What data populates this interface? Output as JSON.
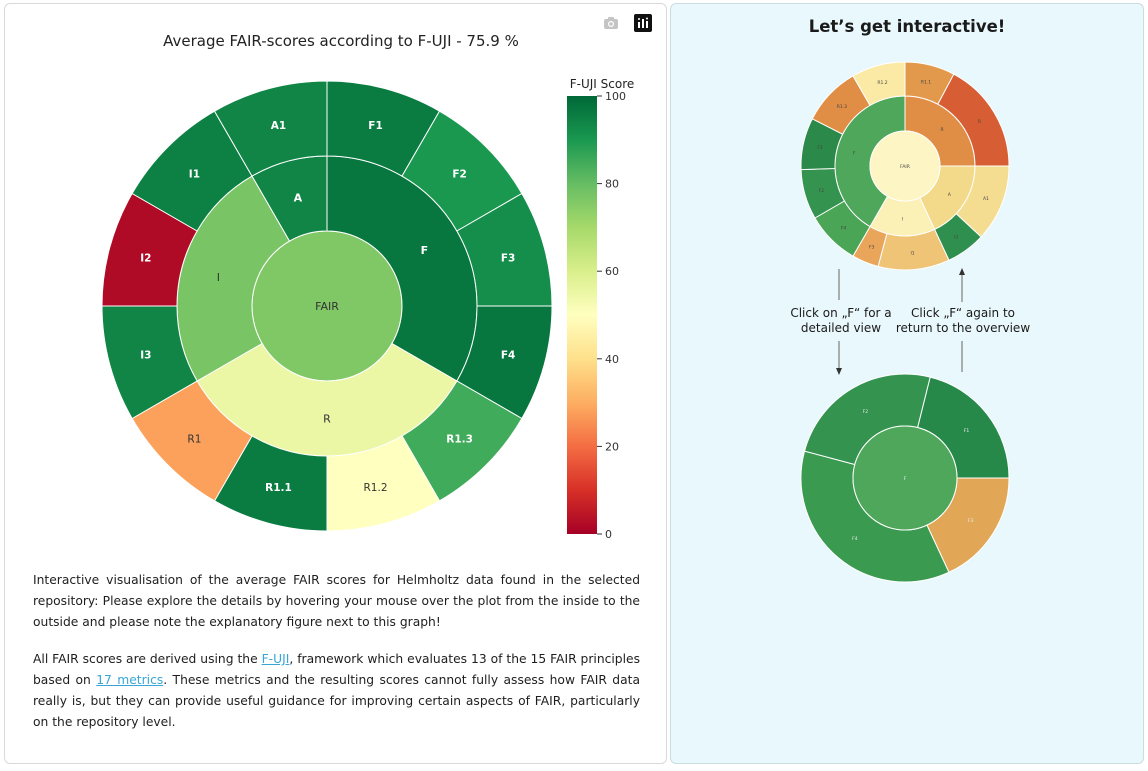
{
  "chart_data": {
    "type": "sunburst",
    "title": "Average FAIR-scores according to F-UJI - 75.9 %",
    "colorbar": {
      "title": "F-UJI Score",
      "ticks": [
        0,
        20,
        40,
        60,
        80,
        100
      ],
      "range": [
        0,
        100
      ],
      "colorscale": "RdYlGn"
    },
    "root": {
      "label": "FAIR",
      "score": 75.9
    },
    "categories": [
      {
        "label": "F",
        "score": 97,
        "children": [
          {
            "label": "F1",
            "score": 96
          },
          {
            "label": "F2",
            "score": 90
          },
          {
            "label": "F3",
            "score": 92
          },
          {
            "label": "F4",
            "score": 97
          }
        ]
      },
      {
        "label": "R",
        "score": 55,
        "children": [
          {
            "label": "R1.3",
            "score": 85
          },
          {
            "label": "R1.2",
            "score": 50
          },
          {
            "label": "R1.1",
            "score": 96
          },
          {
            "label": "R1",
            "score": 28
          }
        ]
      },
      {
        "label": "I",
        "score": 77,
        "children": [
          {
            "label": "I3",
            "score": 94
          },
          {
            "label": "I2",
            "score": 2
          },
          {
            "label": "I1",
            "score": 95
          }
        ]
      },
      {
        "label": "A",
        "score": 94,
        "children": [
          {
            "label": "A1",
            "score": 94
          }
        ]
      }
    ]
  },
  "description": {
    "paragraph1": "Interactive visualisation of the average FAIR scores for Helmholtz data found in the selected repository: Please explore the details by hovering your mouse over the plot from the inside to the outside and please note the explanatory figure next to this graph!",
    "p2_before_link1": "All FAIR scores are derived using the ",
    "link1": "F-UJI",
    "p2_between": ", framework which evaluates 13 of the 15 FAIR principles based on ",
    "link2": "17 metrics",
    "p2_after": ". These metrics and the resulting scores cannot fully assess how FAIR data really is, but they can provide useful guidance for improving certain aspects of FAIR, particularly on the repository level."
  },
  "toolbar": {
    "camera_icon": "camera-icon",
    "logo_icon": "plotly-logo-icon"
  },
  "explainer": {
    "title": "Let’s get interactive!",
    "note_left": "Click on „F“ for a detailed view",
    "note_right": "Click „F“ again to return to the overview",
    "mini_overview": {
      "root": "FAIR",
      "inner": [
        {
          "label": "R",
          "color": "#e08e45"
        },
        {
          "label": "A",
          "color": "#f3d98a"
        },
        {
          "label": "I",
          "color": "#fbf0b5"
        },
        {
          "label": "F",
          "color": "#4ea75b"
        }
      ],
      "outer": [
        {
          "label": "R1.1",
          "color": "#e2994c"
        },
        {
          "label": "R",
          "color": "#d75e34"
        },
        {
          "label": "A1",
          "color": "#f4dd91"
        },
        {
          "label": "I3",
          "color": "#2f8f4e"
        },
        {
          "label": "I1",
          "color": "#f0c477"
        },
        {
          "label": "F3",
          "color": "#e9a65a"
        },
        {
          "label": "F4",
          "color": "#4aa556"
        },
        {
          "label": "F2",
          "color": "#34934f"
        },
        {
          "label": "F1",
          "color": "#2b8a4a"
        },
        {
          "label": "R1.3",
          "color": "#e08e45"
        },
        {
          "label": "R1.2",
          "color": "#fbeaa6"
        }
      ]
    },
    "mini_detail": {
      "root": "F",
      "outer": [
        {
          "label": "F1",
          "color": "#26894a"
        },
        {
          "label": "F3",
          "color": "#e2a657"
        },
        {
          "label": "F4",
          "color": "#3a9a4f"
        },
        {
          "label": "F2",
          "color": "#33934f"
        }
      ]
    }
  }
}
